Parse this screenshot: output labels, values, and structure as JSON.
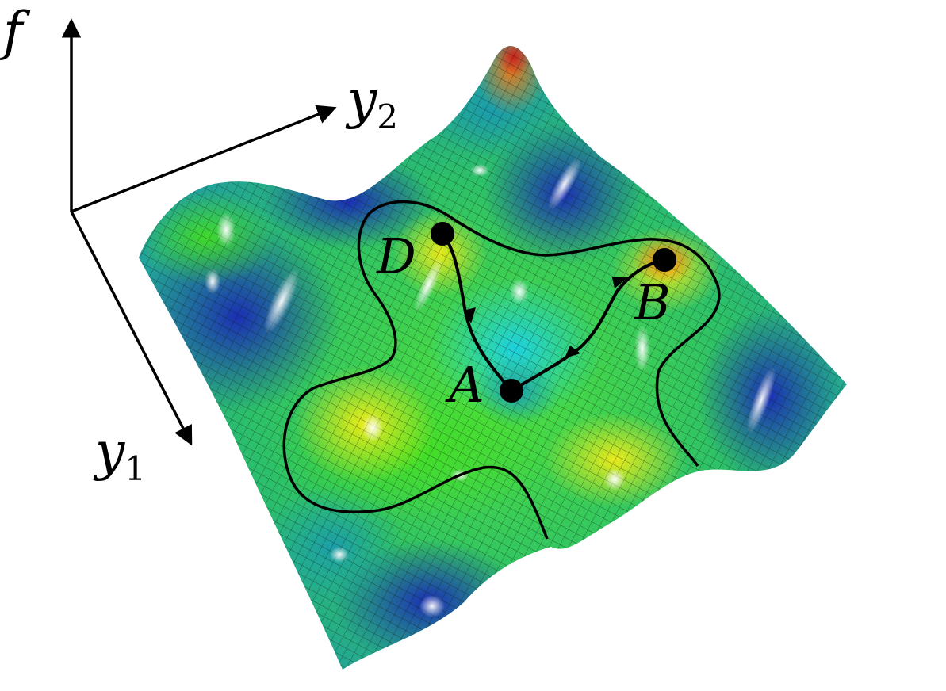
{
  "axes": {
    "vertical": {
      "symbol": "f",
      "subscript": ""
    },
    "depth": {
      "symbol": "y",
      "subscript": "2"
    },
    "horizontal": {
      "symbol": "y",
      "subscript": "1"
    }
  },
  "points": [
    {
      "id": "A",
      "label": "A"
    },
    {
      "id": "B",
      "label": "B"
    },
    {
      "id": "D",
      "label": "D"
    }
  ],
  "paths": [
    {
      "from": "A",
      "to": "D"
    },
    {
      "from": "A",
      "to": "B"
    }
  ],
  "colors": {
    "low": "#1f2fb5",
    "mid_low": "#1aa8c8",
    "mid": "#3fd21f",
    "mid_high": "#e8e21a",
    "high": "#d22a18",
    "grid": "#0a1a0a",
    "contour": "#000000"
  }
}
